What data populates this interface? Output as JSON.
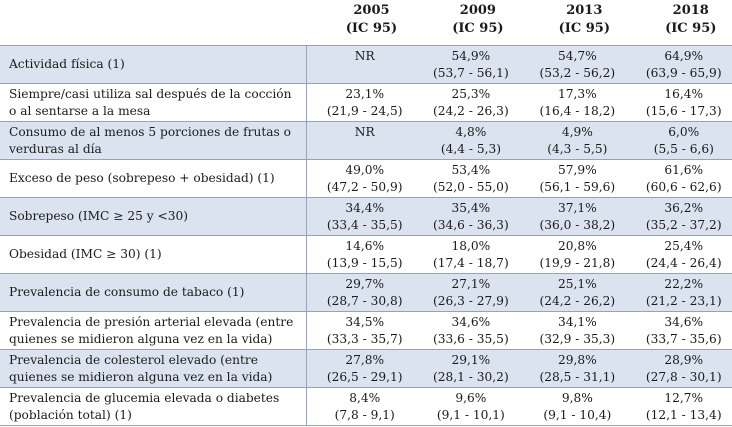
{
  "header": {
    "years": [
      {
        "year": "2005",
        "ci": "(IC 95)"
      },
      {
        "year": "2009",
        "ci": "(IC 95)"
      },
      {
        "year": "2013",
        "ci": "(IC 95)"
      },
      {
        "year": "2018",
        "ci": "(IC 95)"
      }
    ]
  },
  "rows": [
    {
      "label": "Actividad física (1)",
      "shaded": true,
      "cells": [
        {
          "pct": "NR",
          "ci": ""
        },
        {
          "pct": "54,9%",
          "ci": "(53,7 - 56,1)"
        },
        {
          "pct": "54,7%",
          "ci": "(53,2 - 56,2)"
        },
        {
          "pct": "64,9%",
          "ci": "(63,9 - 65,9)"
        }
      ]
    },
    {
      "label": "Siempre/casi utiliza sal después de la cocción o al sentarse a la mesa",
      "shaded": false,
      "cells": [
        {
          "pct": "23,1%",
          "ci": "(21,9 - 24,5)"
        },
        {
          "pct": "25,3%",
          "ci": "(24,2 - 26,3)"
        },
        {
          "pct": "17,3%",
          "ci": "(16,4 - 18,2)"
        },
        {
          "pct": "16,4%",
          "ci": "(15,6 - 17,3)"
        }
      ]
    },
    {
      "label": "Consumo de al menos 5 porciones de frutas o verduras al día",
      "shaded": true,
      "cells": [
        {
          "pct": "NR",
          "ci": ""
        },
        {
          "pct": "4,8%",
          "ci": "(4,4 - 5,3)"
        },
        {
          "pct": "4,9%",
          "ci": "(4,3 - 5,5)"
        },
        {
          "pct": "6,0%",
          "ci": "(5,5 - 6,6)"
        }
      ]
    },
    {
      "label": "Exceso de peso (sobrepeso + obesidad) (1)",
      "shaded": false,
      "cells": [
        {
          "pct": "49,0%",
          "ci": "(47,2 - 50,9)"
        },
        {
          "pct": "53,4%",
          "ci": "(52,0 - 55,0)"
        },
        {
          "pct": "57,9%",
          "ci": "(56,1 - 59,6)"
        },
        {
          "pct": "61,6%",
          "ci": "(60,6 - 62,6)"
        }
      ]
    },
    {
      "label": "Sobrepeso (IMC ≥ 25 y <30)",
      "shaded": true,
      "cells": [
        {
          "pct": "34,4%",
          "ci": "(33,4 - 35,5)"
        },
        {
          "pct": "35,4%",
          "ci": "(34,6 - 36,3)"
        },
        {
          "pct": "37,1%",
          "ci": "(36,0 - 38,2)"
        },
        {
          "pct": "36,2%",
          "ci": "(35,2 - 37,2)"
        }
      ]
    },
    {
      "label": "Obesidad (IMC ≥ 30) (1)",
      "shaded": false,
      "cells": [
        {
          "pct": "14,6%",
          "ci": "(13,9 - 15,5)"
        },
        {
          "pct": "18,0%",
          "ci": "(17,4 - 18,7)"
        },
        {
          "pct": "20,8%",
          "ci": "(19,9 - 21,8)"
        },
        {
          "pct": "25,4%",
          "ci": "(24,4 - 26,4)"
        }
      ]
    },
    {
      "label": "Prevalencia de consumo de tabaco (1)",
      "shaded": true,
      "cells": [
        {
          "pct": "29,7%",
          "ci": "(28,7 - 30,8)"
        },
        {
          "pct": "27,1%",
          "ci": "(26,3 - 27,9)"
        },
        {
          "pct": "25,1%",
          "ci": "(24,2 - 26,2)"
        },
        {
          "pct": "22,2%",
          "ci": "(21,2 - 23,1)"
        }
      ]
    },
    {
      "label": "Prevalencia de presión arterial elevada (entre quienes se midieron alguna vez en la vida)",
      "shaded": false,
      "cells": [
        {
          "pct": "34,5%",
          "ci": "(33,3 - 35,7)"
        },
        {
          "pct": "34,6%",
          "ci": "(33,6 - 35,5)"
        },
        {
          "pct": "34,1%",
          "ci": "(32,9 - 35,3)"
        },
        {
          "pct": "34,6%",
          "ci": "(33,7 - 35,6)"
        }
      ]
    },
    {
      "label": "Prevalencia de colesterol elevado (entre quienes se midieron alguna vez en la vida)",
      "shaded": true,
      "cells": [
        {
          "pct": "27,8%",
          "ci": "(26,5 - 29,1)"
        },
        {
          "pct": "29,1%",
          "ci": "(28,1 - 30,2)"
        },
        {
          "pct": "29,8%",
          "ci": "(28,5 - 31,1)"
        },
        {
          "pct": "28,9%",
          "ci": "(27,8 - 30,1)"
        }
      ]
    },
    {
      "label": "Prevalencia de glucemia elevada o diabetes (población total) (1)",
      "shaded": false,
      "cells": [
        {
          "pct": "8,4%",
          "ci": "(7,8 - 9,1)"
        },
        {
          "pct": "9,6%",
          "ci": "(9,1 - 10,1)"
        },
        {
          "pct": "9,8%",
          "ci": "(9,1 - 10,4)"
        },
        {
          "pct": "12,7%",
          "ci": "(12,1 - 13,4)"
        }
      ]
    }
  ]
}
